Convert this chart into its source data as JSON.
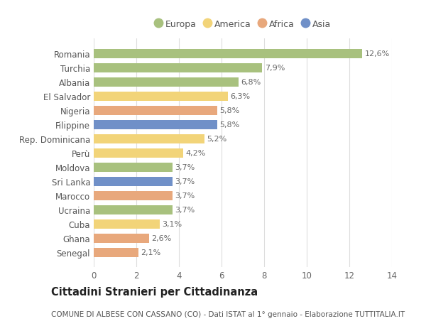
{
  "countries": [
    "Romania",
    "Turchia",
    "Albania",
    "El Salvador",
    "Nigeria",
    "Filippine",
    "Rep. Dominicana",
    "Perù",
    "Moldova",
    "Sri Lanka",
    "Marocco",
    "Ucraina",
    "Cuba",
    "Ghana",
    "Senegal"
  ],
  "values": [
    12.6,
    7.9,
    6.8,
    6.3,
    5.8,
    5.8,
    5.2,
    4.2,
    3.7,
    3.7,
    3.7,
    3.7,
    3.1,
    2.6,
    2.1
  ],
  "labels": [
    "12,6%",
    "7,9%",
    "6,8%",
    "6,3%",
    "5,8%",
    "5,8%",
    "5,2%",
    "4,2%",
    "3,7%",
    "3,7%",
    "3,7%",
    "3,7%",
    "3,1%",
    "2,6%",
    "2,1%"
  ],
  "continents": [
    "Europa",
    "Europa",
    "Europa",
    "America",
    "Africa",
    "Asia",
    "America",
    "America",
    "Europa",
    "Asia",
    "Africa",
    "Europa",
    "America",
    "Africa",
    "Africa"
  ],
  "continent_colors": {
    "Europa": "#a8c17e",
    "America": "#f2d479",
    "Africa": "#e8a87c",
    "Asia": "#7090c8"
  },
  "legend_order": [
    "Europa",
    "America",
    "Africa",
    "Asia"
  ],
  "xlim": [
    0,
    14
  ],
  "xticks": [
    0,
    2,
    4,
    6,
    8,
    10,
    12,
    14
  ],
  "title": "Cittadini Stranieri per Cittadinanza",
  "subtitle": "COMUNE DI ALBESE CON CASSANO (CO) - Dati ISTAT al 1° gennaio - Elaborazione TUTTITALIA.IT",
  "background_color": "#ffffff",
  "grid_color": "#dddddd",
  "bar_height": 0.65,
  "label_fontsize": 8.0,
  "title_fontsize": 10.5,
  "subtitle_fontsize": 7.5,
  "ytick_fontsize": 8.5,
  "xtick_fontsize": 8.5
}
